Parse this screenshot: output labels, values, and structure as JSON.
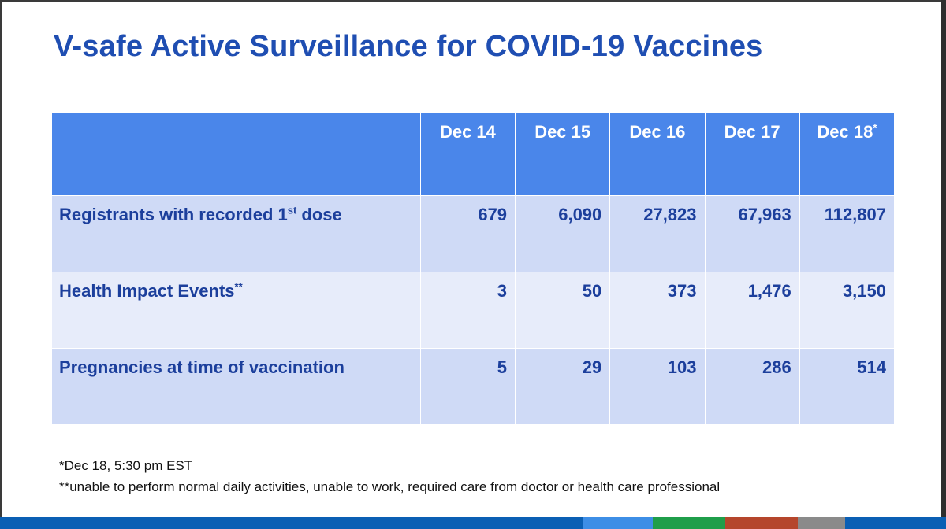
{
  "title": "V-safe Active Surveillance for COVID-19 Vaccines",
  "table": {
    "columns": [
      {
        "label": "Dec 14",
        "mark": ""
      },
      {
        "label": "Dec 15",
        "mark": ""
      },
      {
        "label": "Dec 16",
        "mark": ""
      },
      {
        "label": "Dec 17",
        "mark": ""
      },
      {
        "label": "Dec 18",
        "mark": "*"
      }
    ],
    "rows": [
      {
        "label": "Registrants with recorded 1",
        "sup": "st",
        "label_tail": " dose",
        "values": [
          "679",
          "6,090",
          "27,823",
          "67,963",
          "112,807"
        ]
      },
      {
        "label": "Health Impact Events",
        "sup": "**",
        "label_tail": "",
        "values": [
          "3",
          "50",
          "373",
          "1,476",
          "3,150"
        ]
      },
      {
        "label": "Pregnancies at time of vaccination",
        "sup": "",
        "label_tail": "",
        "values": [
          "5",
          "29",
          "103",
          "286",
          "514"
        ]
      }
    ]
  },
  "footnotes": [
    "*Dec 18, 5:30 pm EST",
    "**unable to perform normal daily activities, unable to work, required care from doctor or health care professional"
  ],
  "colors": {
    "title": "#1f4eb2",
    "header_bg": "#4a86ea",
    "row_dark": "#cfdaf6",
    "row_light": "#e7ecfa",
    "cell_text": "#1c3f9c",
    "bottom_strip": "#0a5fb4"
  }
}
